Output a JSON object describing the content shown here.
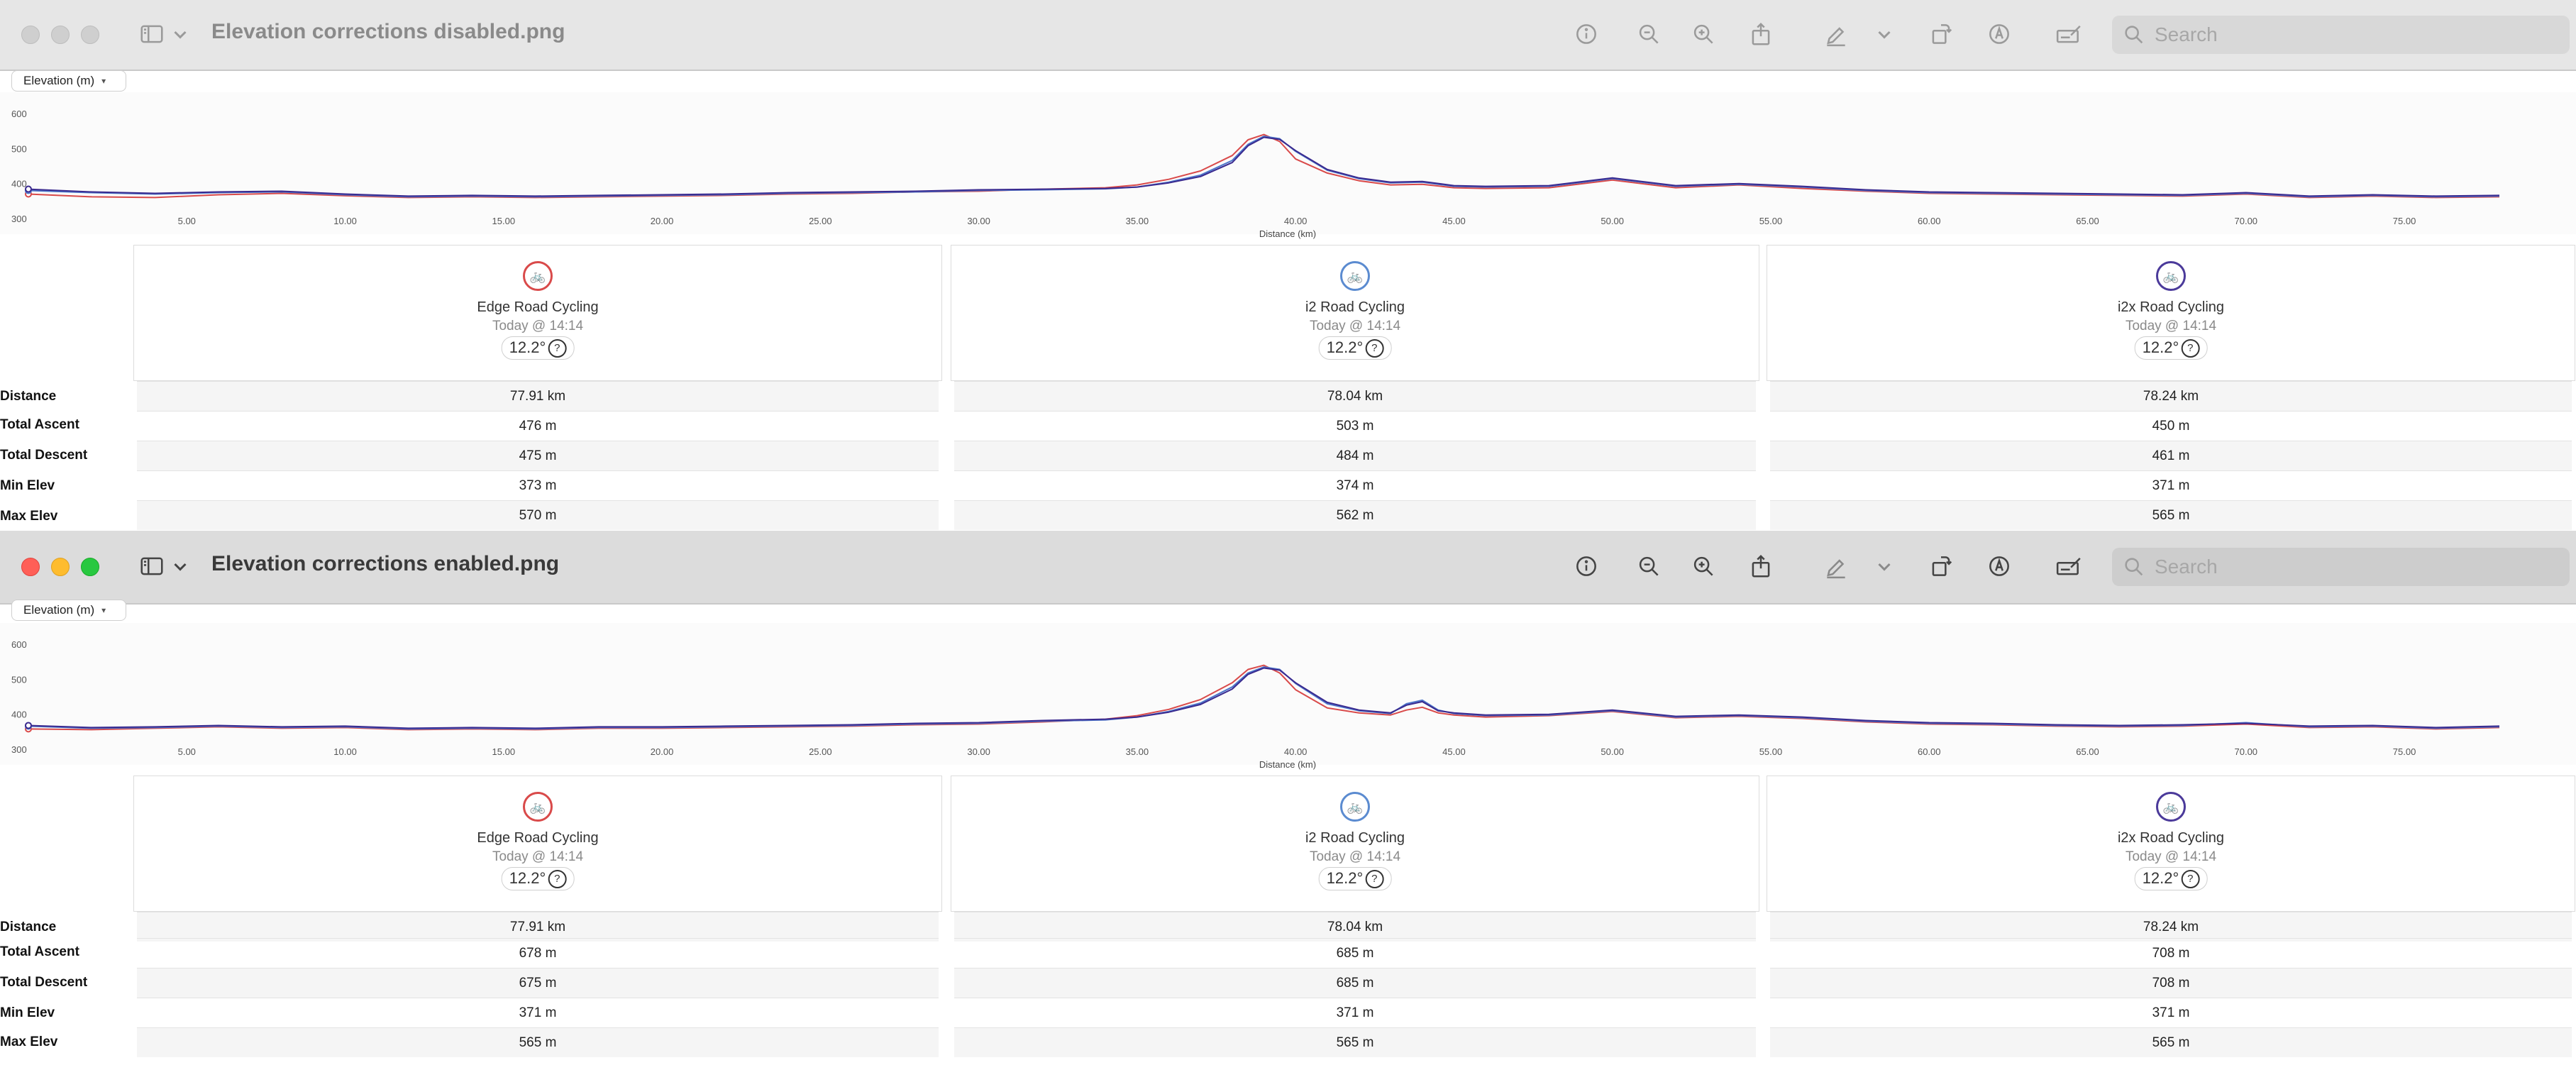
{
  "windows": [
    {
      "title": "Elevation corrections disabled.png",
      "search_placeholder": "Search",
      "metric_selector": "Elevation (m)",
      "chart_data": {
        "type": "line",
        "xlabel": "Distance (km)",
        "ylabel": "",
        "xlim": [
          0,
          79.5
        ],
        "ylim": [
          300,
          600
        ],
        "xticks": [
          "5.00",
          "10.00",
          "15.00",
          "20.00",
          "25.00",
          "30.00",
          "35.00",
          "40.00",
          "45.00",
          "50.00",
          "55.00",
          "60.00",
          "65.00",
          "70.00",
          "75.00"
        ],
        "yticks": [
          "300",
          "400",
          "500",
          "600"
        ],
        "x": [
          0,
          2,
          4,
          6,
          8,
          10,
          12,
          14,
          16,
          18,
          20,
          22,
          24,
          26,
          28,
          30,
          32,
          34,
          35,
          36,
          37,
          38,
          38.5,
          39,
          39.5,
          40,
          41,
          42,
          43,
          44,
          45,
          46,
          48,
          50,
          52,
          54,
          56,
          58,
          60,
          62,
          64,
          66,
          68,
          70,
          72,
          74,
          76,
          78
        ],
        "series": [
          {
            "color": "#d94a4a",
            "values": [
              370,
              362,
              360,
              368,
              372,
              365,
              360,
              362,
              360,
              362,
              364,
              366,
              370,
              372,
              376,
              378,
              384,
              388,
              396,
              412,
              436,
              480,
              525,
              540,
              520,
              470,
              430,
              408,
              396,
              398,
              388,
              386,
              388,
              410,
              388,
              396,
              386,
              378,
              372,
              370,
              368,
              366,
              364,
              370,
              360,
              364,
              360,
              362
            ]
          },
          {
            "color": "#4c74c9",
            "values": [
              380,
              374,
              370,
              374,
              376,
              368,
              362,
              364,
              362,
              364,
              366,
              368,
              372,
              374,
              376,
              380,
              382,
              385,
              390,
              404,
              424,
              466,
              512,
              535,
              528,
              492,
              438,
              414,
              402,
              404,
              392,
              390,
              392,
              414,
              392,
              398,
              390,
              380,
              374,
              372,
              370,
              368,
              366,
              372,
              362,
              366,
              362,
              364
            ]
          },
          {
            "color": "#3a2a8f",
            "values": [
              384,
              376,
              372,
              376,
              378,
              370,
              364,
              366,
              364,
              366,
              368,
              370,
              374,
              376,
              378,
              382,
              384,
              386,
              390,
              402,
              420,
              460,
              508,
              532,
              526,
              494,
              440,
              416,
              404,
              406,
              394,
              392,
              394,
              416,
              394,
              400,
              392,
              382,
              376,
              374,
              372,
              370,
              368,
              374,
              364,
              368,
              364,
              366
            ]
          }
        ]
      },
      "activities": [
        {
          "name": "Edge Road Cycling",
          "time": "Today @ 14:14",
          "weather": "12.2°",
          "color": "#d94a4a"
        },
        {
          "name": "i2 Road Cycling",
          "time": "Today @ 14:14",
          "weather": "12.2°",
          "color": "#5b8bd0"
        },
        {
          "name": "i2x Road Cycling",
          "time": "Today @ 14:14",
          "weather": "12.2°",
          "color": "#4b3a9a"
        }
      ],
      "stat_labels": [
        "Distance",
        "Total Ascent",
        "Total Descent",
        "Min Elev",
        "Max Elev"
      ],
      "stats": [
        [
          "77.91 km",
          "476 m",
          "475 m",
          "373 m",
          "570 m"
        ],
        [
          "78.04 km",
          "503 m",
          "484 m",
          "374 m",
          "562 m"
        ],
        [
          "78.24 km",
          "450 m",
          "461 m",
          "371 m",
          "565 m"
        ]
      ]
    },
    {
      "title": "Elevation corrections enabled.png",
      "search_placeholder": "Search",
      "metric_selector": "Elevation (m)",
      "chart_data": {
        "type": "line",
        "xlabel": "Distance (km)",
        "ylabel": "",
        "xlim": [
          0,
          79.5
        ],
        "ylim": [
          300,
          600
        ],
        "xticks": [
          "5.00",
          "10.00",
          "15.00",
          "20.00",
          "25.00",
          "30.00",
          "35.00",
          "40.00",
          "45.00",
          "50.00",
          "55.00",
          "60.00",
          "65.00",
          "70.00",
          "75.00"
        ],
        "yticks": [
          "300",
          "400",
          "500",
          "600"
        ],
        "x": [
          0,
          2,
          4,
          6,
          8,
          10,
          12,
          14,
          16,
          18,
          20,
          22,
          24,
          26,
          28,
          30,
          32,
          34,
          35,
          36,
          37,
          38,
          38.5,
          39,
          39.5,
          40,
          41,
          42,
          43,
          43.5,
          44,
          44.5,
          45,
          46,
          48,
          50,
          52,
          54,
          56,
          58,
          60,
          62,
          64,
          66,
          68,
          70,
          72,
          74,
          76,
          78
        ],
        "series": [
          {
            "color": "#d94a4a",
            "values": [
              358,
              356,
              360,
              364,
              360,
              362,
              356,
              358,
              356,
              360,
              360,
              362,
              364,
              366,
              370,
              372,
              378,
              386,
              396,
              414,
              442,
              490,
              528,
              540,
              518,
              470,
              418,
              404,
              398,
              412,
              420,
              404,
              398,
              392,
              396,
              408,
              390,
              394,
              388,
              378,
              372,
              370,
              366,
              364,
              366,
              372,
              362,
              364,
              358,
              362
            ]
          },
          {
            "color": "#4c74c9",
            "values": [
              366,
              360,
              362,
              366,
              362,
              364,
              358,
              360,
              358,
              362,
              362,
              364,
              366,
              368,
              372,
              374,
              380,
              384,
              392,
              408,
              432,
              478,
              518,
              535,
              528,
              488,
              430,
              410,
              402,
              430,
              440,
              412,
              402,
              396,
              398,
              410,
              392,
              396,
              390,
              380,
              374,
              372,
              368,
              366,
              368,
              376,
              364,
              366,
              360,
              364
            ]
          },
          {
            "color": "#3a2a8f",
            "values": [
              368,
              362,
              364,
              368,
              364,
              366,
              360,
              362,
              360,
              364,
              364,
              366,
              368,
              370,
              374,
              376,
              382,
              386,
              392,
              406,
              428,
              472,
              514,
              532,
              526,
              490,
              434,
              412,
              404,
              426,
              436,
              410,
              404,
              398,
              400,
              412,
              394,
              398,
              392,
              382,
              376,
              374,
              370,
              368,
              370,
              374,
              366,
              368,
              362,
              366
            ]
          }
        ]
      },
      "activities": [
        {
          "name": "Edge Road Cycling",
          "time": "Today @ 14:14",
          "weather": "12.2°",
          "color": "#d94a4a"
        },
        {
          "name": "i2 Road Cycling",
          "time": "Today @ 14:14",
          "weather": "12.2°",
          "color": "#5b8bd0"
        },
        {
          "name": "i2x Road Cycling",
          "time": "Today @ 14:14",
          "weather": "12.2°",
          "color": "#4b3a9a"
        }
      ],
      "stat_labels": [
        "Distance",
        "Total Ascent",
        "Total Descent",
        "Min Elev",
        "Max Elev"
      ],
      "stats": [
        [
          "77.91 km",
          "678 m",
          "675 m",
          "371 m",
          "565 m"
        ],
        [
          "78.04 km",
          "685 m",
          "685 m",
          "371 m",
          "565 m"
        ],
        [
          "78.24 km",
          "708 m",
          "708 m",
          "371 m",
          "565 m"
        ]
      ]
    }
  ]
}
